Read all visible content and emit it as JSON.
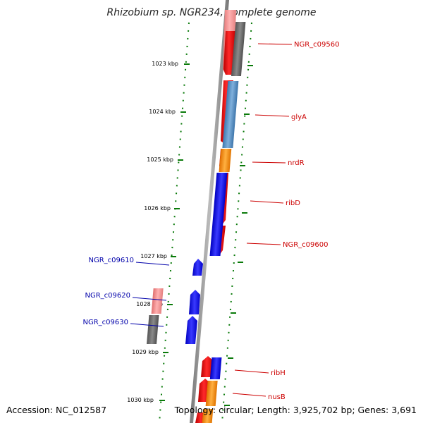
{
  "title": "Rhizobium sp. NGR234, complete genome",
  "footer": {
    "accession": "Accession: NC_012587",
    "summary": "Topology: circular; Length: 3,925,702 bp; Genes: 3,691"
  },
  "ruler_labels": [
    "1023 kbp",
    "1024 kbp",
    "1025 kbp",
    "1026 kbp",
    "1027 kbp",
    "1028 kbp",
    "1029 kbp",
    "1030 kbp"
  ],
  "genes_right": [
    "NGR_c09560",
    "glyA",
    "nrdR",
    "ribD",
    "NGR_c09600",
    "ribH",
    "nusB"
  ],
  "genes_left": [
    "NGR_c09610",
    "NGR_c09620",
    "NGR_c09630"
  ],
  "colors": {
    "red_label": "#cc0000",
    "blue_label": "#0000aa",
    "ruler_green": "#0a7a0a",
    "strand_gray": "#888888"
  }
}
